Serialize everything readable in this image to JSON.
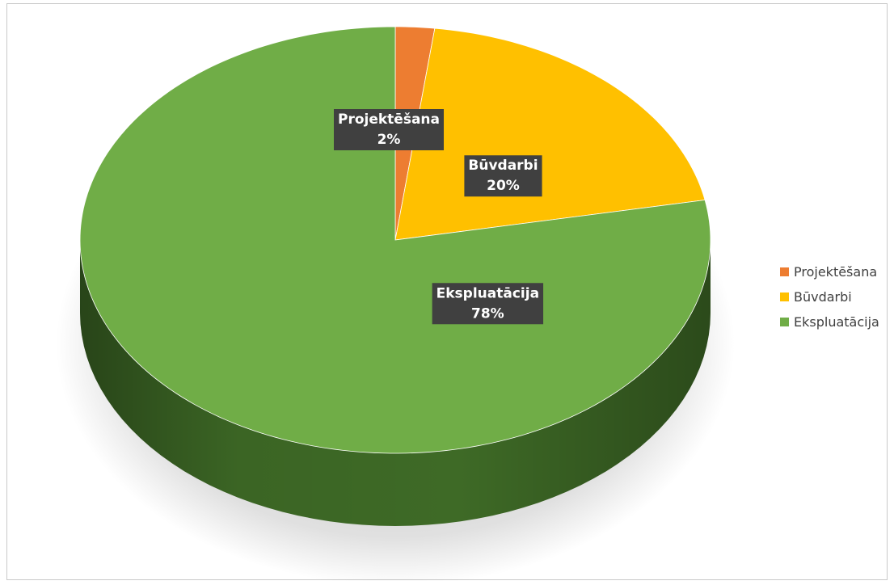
{
  "chart_data": {
    "type": "pie",
    "title": "",
    "categories": [
      "Projektēšana",
      "Būvdarbi",
      "Ekspluatācija"
    ],
    "values": [
      2,
      20,
      78
    ],
    "labels": [
      "2%",
      "20%",
      "78%"
    ],
    "colors": [
      "#ed7d31",
      "#ffc000",
      "#70ad47"
    ],
    "side_colors": [
      "#a9551f",
      "#b48800",
      "#3e6a26"
    ],
    "legend_position": "right",
    "style": "3d"
  }
}
